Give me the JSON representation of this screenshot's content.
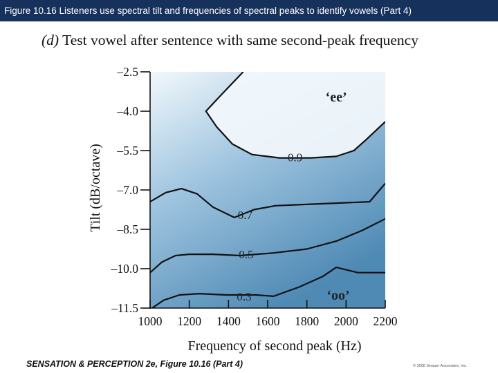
{
  "header": {
    "title": "Figure 10.16 Listeners use spectral tilt and frequencies of spectral peaks to identify vowels (Part 4)"
  },
  "panel": {
    "letter": "(d)",
    "title": "Test vowel after sentence with same second-peak frequency"
  },
  "footer": {
    "left": "SENSATION & PERCEPTION 2e, Figure 10.16 (Part 4)",
    "right": "© 2008 Sinauer Associates, Inc."
  },
  "colors": {
    "light": "#f2f8fc",
    "mid": "#9ec4df",
    "dark": "#4f8ab5",
    "line": "#111111"
  },
  "chart_data": {
    "type": "contour",
    "xlabel": "Frequency of second peak (Hz)",
    "ylabel": "Tilt (dB/octave)",
    "xlim": [
      1000,
      2200
    ],
    "ylim": [
      -11.5,
      -2.5
    ],
    "x_ticks": [
      1000,
      1200,
      1400,
      1600,
      1800,
      2000,
      2200
    ],
    "y_ticks": [
      -2.5,
      -4.0,
      -5.5,
      -7.0,
      -8.5,
      -10.0,
      -11.5
    ],
    "y_tick_labels": [
      "–2.5",
      "–4.0",
      "–5.5",
      "–7.0",
      "–8.5",
      "–10.0",
      "–11.5"
    ],
    "contours": [
      {
        "level": "0.9",
        "points": [
          [
            1475,
            -2.5
          ],
          [
            1360,
            -3.4
          ],
          [
            1285,
            -4.0
          ],
          [
            1340,
            -4.6
          ],
          [
            1420,
            -5.25
          ],
          [
            1520,
            -5.65
          ],
          [
            1660,
            -5.78
          ],
          [
            1820,
            -5.78
          ],
          [
            1950,
            -5.72
          ],
          [
            2040,
            -5.5
          ],
          [
            2100,
            -5.1
          ],
          [
            2200,
            -4.4
          ]
        ],
        "label_at": [
          1740,
          -5.75
        ]
      },
      {
        "level": "0.7",
        "points": [
          [
            1000,
            -7.45
          ],
          [
            1080,
            -7.1
          ],
          [
            1160,
            -6.95
          ],
          [
            1240,
            -7.15
          ],
          [
            1320,
            -7.65
          ],
          [
            1430,
            -8.05
          ],
          [
            1530,
            -7.75
          ],
          [
            1640,
            -7.6
          ],
          [
            1800,
            -7.55
          ],
          [
            1960,
            -7.5
          ],
          [
            2120,
            -7.45
          ],
          [
            2200,
            -6.75
          ]
        ],
        "label_at": [
          1485,
          -7.95
        ]
      },
      {
        "level": "0.5",
        "points": [
          [
            1000,
            -10.15
          ],
          [
            1060,
            -9.75
          ],
          [
            1130,
            -9.5
          ],
          [
            1200,
            -9.45
          ],
          [
            1320,
            -9.45
          ],
          [
            1460,
            -9.5
          ],
          [
            1630,
            -9.4
          ],
          [
            1800,
            -9.25
          ],
          [
            1950,
            -8.95
          ],
          [
            2080,
            -8.55
          ],
          [
            2200,
            -8.1
          ]
        ],
        "label_at": [
          1490,
          -9.45
        ]
      },
      {
        "level": "0.3",
        "points": [
          [
            1000,
            -11.55
          ],
          [
            1070,
            -11.2
          ],
          [
            1150,
            -11.0
          ],
          [
            1250,
            -10.95
          ],
          [
            1390,
            -11.0
          ],
          [
            1540,
            -11.0
          ],
          [
            1630,
            -11.05
          ],
          [
            1760,
            -10.7
          ],
          [
            1880,
            -10.3
          ],
          [
            1950,
            -9.95
          ],
          [
            2060,
            -10.15
          ],
          [
            2200,
            -10.15
          ]
        ],
        "label_at": [
          1480,
          -11.05
        ]
      }
    ],
    "regions": [
      {
        "label": "‘ee’",
        "at": [
          1950,
          -3.45
        ]
      },
      {
        "label": "‘oo’",
        "at": [
          1960,
          -11.0
        ]
      }
    ]
  }
}
